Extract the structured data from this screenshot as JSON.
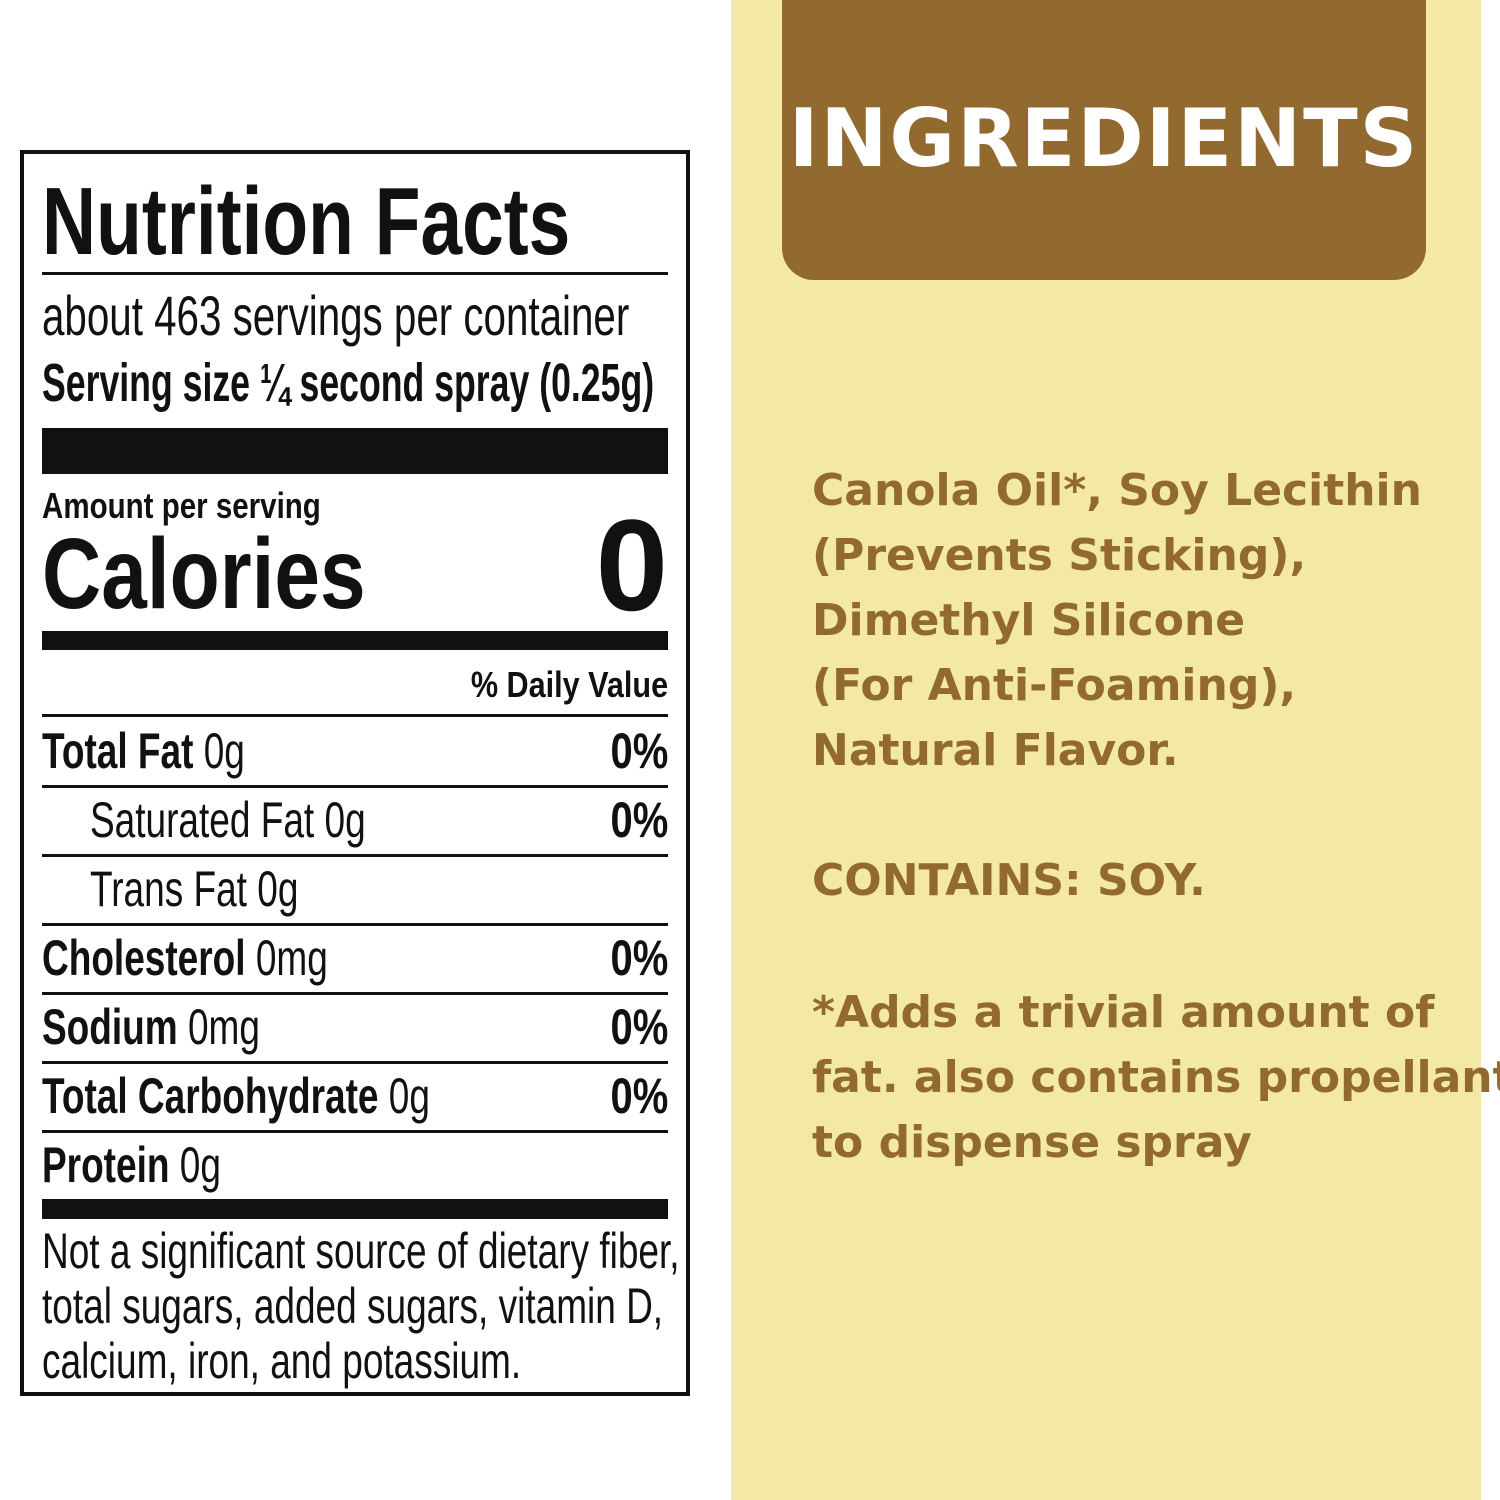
{
  "nutrition": {
    "title": "Nutrition Facts",
    "servings": "about 463 servings per container",
    "serving_size_label": "Serving size",
    "serving_size_value": "¼ second spray (0.25g)",
    "amount_per_serving": "Amount per serving",
    "calories_label": "Calories",
    "calories_value": "0",
    "daily_value_header": "% Daily Value",
    "rows": [
      {
        "label": "Total Fat",
        "amount": "0g",
        "dv": "0%"
      },
      {
        "label": "Saturated Fat",
        "amount": "0g",
        "dv": "0%"
      },
      {
        "label": "Trans Fat",
        "amount": "0g",
        "dv": ""
      },
      {
        "label": "Cholesterol",
        "amount": "0mg",
        "dv": "0%"
      },
      {
        "label": "Sodium",
        "amount": "0mg",
        "dv": "0%"
      },
      {
        "label": "Total Carbohydrate",
        "amount": "0g",
        "dv": "0%"
      },
      {
        "label": "Protein",
        "amount": "0g",
        "dv": ""
      }
    ],
    "footnote_lines": [
      "Not a significant source of dietary fiber,",
      "total sugars, added sugars, vitamin D,",
      "calcium, iron, and potassium."
    ]
  },
  "ingredients": {
    "header": "INGREDIENTS",
    "lines": [
      "Canola Oil*, Soy Lecithin",
      "(Prevents Sticking),",
      "Dimethyl Silicone",
      "(For Anti-Foaming),",
      "Natural Flavor."
    ],
    "contains": "CONTAINS: SOY.",
    "note_lines": [
      "*Adds a trivial amount of",
      "fat. also contains propellant",
      "to dispense spray"
    ],
    "colors": {
      "panel": "#f3e8a6",
      "accent": "#926a30"
    }
  }
}
